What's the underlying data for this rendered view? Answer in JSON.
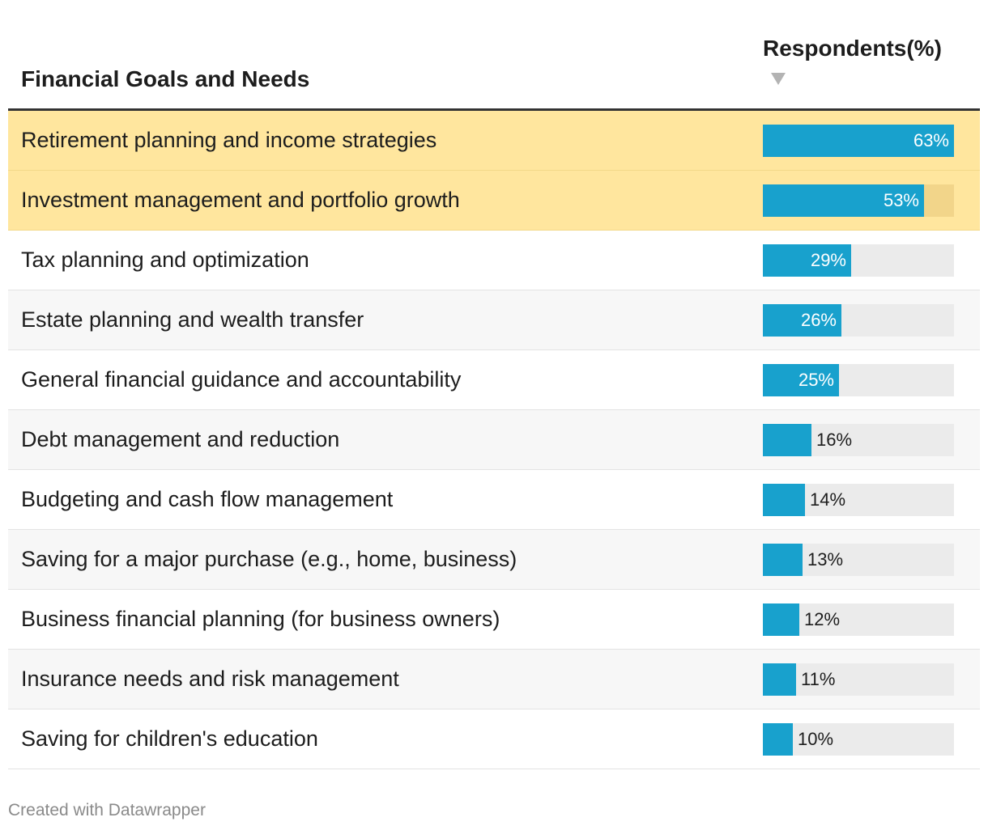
{
  "header": {
    "goal_col": "Financial Goals and Needs",
    "value_col": "Respondents(%)"
  },
  "chart_data": {
    "type": "table",
    "title": "",
    "columns": [
      "Financial Goals and Needs",
      "Respondents(%)"
    ],
    "max_value": 63,
    "categories": [
      "Retirement planning and income strategies",
      "Investment management and portfolio growth",
      "Tax planning and optimization",
      "Estate planning and wealth transfer",
      "General financial guidance and accountability",
      "Debt management and reduction",
      "Budgeting and cash flow management",
      "Saving for a major purchase (e.g., home, business)",
      "Business financial planning (for business owners)",
      "Insurance needs and risk management",
      "Saving for children's education"
    ],
    "values": [
      63,
      53,
      29,
      26,
      25,
      16,
      14,
      13,
      12,
      11,
      10
    ],
    "highlighted": [
      true,
      true,
      false,
      false,
      false,
      false,
      false,
      false,
      false,
      false,
      false
    ]
  },
  "colors": {
    "bar": "#18a1cd",
    "track": "#ebebeb",
    "highlight": "#ffe69e"
  },
  "footer": {
    "credit": "Created with Datawrapper"
  }
}
